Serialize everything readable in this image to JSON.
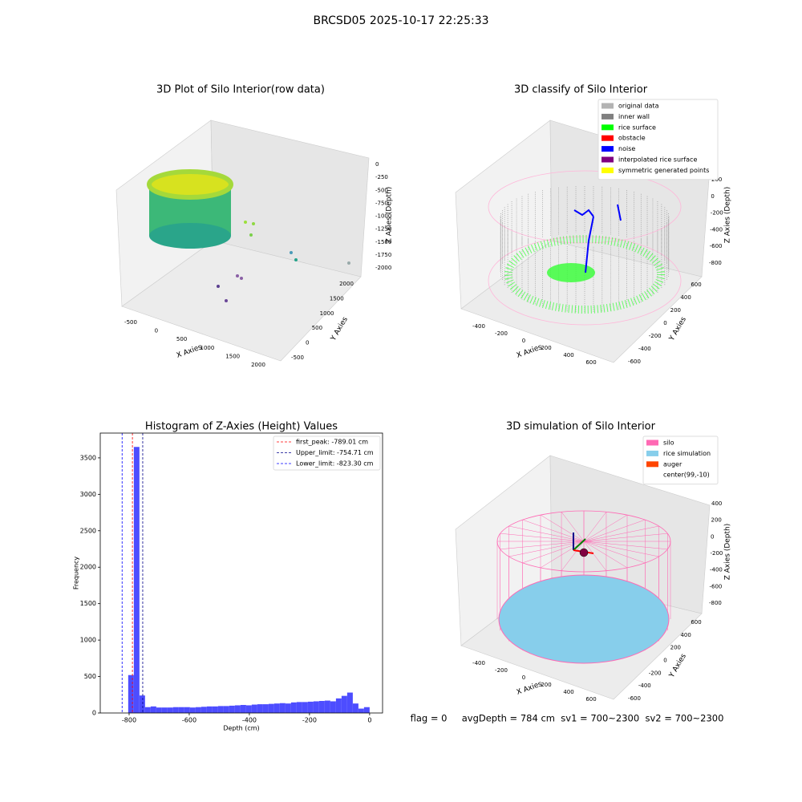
{
  "title": "BRCSD05 2025-10-17 22:25:33",
  "footer": "flag = 0     avgDepth = 784 cm  sv1 = 700~2300  sv2 = 700~2300",
  "chart_data": [
    {
      "type": "scatter3d",
      "title": "3D Plot of Silo Interior(row data)",
      "x_label": "X Axies",
      "y_label": "Y Axies",
      "z_label": "Z Axies (Depth)",
      "xticks": [
        -500,
        0,
        500,
        1000,
        1500,
        2000
      ],
      "yticks": [
        -500,
        0,
        500,
        1000,
        1500,
        2000
      ],
      "zticks": [
        -2000,
        -1750,
        -1500,
        -1250,
        -1000,
        -750,
        -500,
        -250,
        0
      ]
    },
    {
      "type": "scatter3d",
      "title": "3D classify of Silo Interior",
      "x_label": "X Axies",
      "y_label": "Y Axies",
      "z_label": "Z Axies (Depth)",
      "xticks": [
        -400,
        -200,
        0,
        200,
        400,
        600
      ],
      "yticks": [
        -600,
        -400,
        -200,
        0,
        200,
        400,
        600
      ],
      "zticks": [
        -800,
        -600,
        -400,
        -200,
        0,
        200
      ],
      "legend": [
        {
          "name": "original data",
          "color": "#b3b3b3"
        },
        {
          "name": "inner wall",
          "color": "#808080"
        },
        {
          "name": "rice surface",
          "color": "#00ff00"
        },
        {
          "name": "obstacle",
          "color": "#ff0000"
        },
        {
          "name": "noise",
          "color": "#0000ff"
        },
        {
          "name": "interpolated rice surface",
          "color": "#800080"
        },
        {
          "name": "symmetric generated points",
          "color": "#ffff00"
        }
      ]
    },
    {
      "type": "histogram",
      "title": "Histogram of Z-Axies (Height) Values",
      "x_label": "Depth (cm)",
      "y_label": "Frequency",
      "color": "#4d4dff",
      "bins": [
        -803.0,
        -784.3,
        -765.7,
        -747.0,
        -728.3,
        -709.6,
        -691.0,
        -672.3,
        -653.6,
        -634.9,
        -616.3,
        -597.6,
        -578.9,
        -560.2,
        -541.6,
        -522.9,
        -504.2,
        -485.5,
        -466.9,
        -448.2,
        -429.5,
        -410.8,
        -392.2,
        -373.5,
        -354.8,
        -336.1,
        -317.5,
        -298.8,
        -280.1,
        -261.4,
        -242.8,
        -224.1,
        -205.4,
        -186.7,
        -168.1,
        -149.4,
        -130.7,
        -112.0,
        -93.4,
        -74.7,
        -56.0,
        -37.3,
        -18.7,
        0.0
      ],
      "values": [
        520,
        3650,
        240,
        80,
        90,
        75,
        75,
        75,
        80,
        80,
        80,
        75,
        80,
        85,
        90,
        90,
        95,
        95,
        100,
        105,
        110,
        105,
        115,
        120,
        120,
        125,
        130,
        135,
        130,
        145,
        150,
        150,
        155,
        160,
        165,
        170,
        160,
        200,
        235,
        280,
        130,
        60,
        80
      ],
      "xlim": [
        -896,
        43
      ],
      "xticks": [
        -800,
        -600,
        -400,
        -200,
        0
      ],
      "ylim": [
        0,
        3840
      ],
      "yticks": [
        0,
        500,
        1000,
        1500,
        2000,
        2500,
        3000,
        3500
      ],
      "vlines": [
        {
          "label": "first_peak: -789.01 cm",
          "value": -789.01,
          "color": "#ff0000"
        },
        {
          "label": "Upper_limit: -754.71 cm",
          "value": -754.71,
          "color": "#00008b"
        },
        {
          "label": "Lower_limit: -823.30 cm",
          "value": -823.3,
          "color": "#0000ff"
        }
      ]
    },
    {
      "type": "scatter3d",
      "title": "3D simulation of Silo Interior",
      "x_label": "X Axies",
      "y_label": "Y Axies",
      "z_label": "Z Axies (Depth)",
      "xticks": [
        -400,
        -200,
        0,
        200,
        400,
        600
      ],
      "yticks": [
        -600,
        -400,
        -200,
        0,
        200,
        400,
        600
      ],
      "zticks": [
        -800,
        -600,
        -400,
        -200,
        0,
        200,
        400
      ],
      "legend": [
        {
          "name": "silo",
          "color": "#ff69b4"
        },
        {
          "name": "rice simulation",
          "color": "#87ceeb"
        },
        {
          "name": "auger",
          "color": "#ff4500"
        },
        {
          "name": "center(99,-10)",
          "color": "#ffffff"
        }
      ]
    }
  ]
}
